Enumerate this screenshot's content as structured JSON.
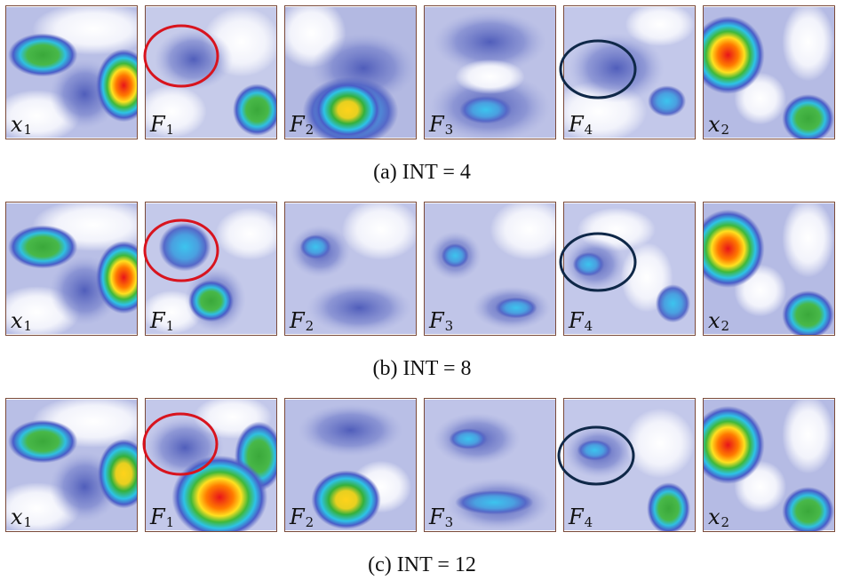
{
  "rows": [
    {
      "caption": "(a)  INT = 4",
      "panels": [
        {
          "var": "x",
          "sub": "1"
        },
        {
          "var": "F",
          "sub": "1"
        },
        {
          "var": "F",
          "sub": "2"
        },
        {
          "var": "F",
          "sub": "3"
        },
        {
          "var": "F",
          "sub": "4"
        },
        {
          "var": "x",
          "sub": "2"
        }
      ]
    },
    {
      "caption": "(b)  INT = 8",
      "panels": [
        {
          "var": "x",
          "sub": "1"
        },
        {
          "var": "F",
          "sub": "1"
        },
        {
          "var": "F",
          "sub": "2"
        },
        {
          "var": "F",
          "sub": "3"
        },
        {
          "var": "F",
          "sub": "4"
        },
        {
          "var": "x",
          "sub": "2"
        }
      ]
    },
    {
      "caption": "(c)  INT = 12",
      "panels": [
        {
          "var": "x",
          "sub": "1"
        },
        {
          "var": "F",
          "sub": "1"
        },
        {
          "var": "F",
          "sub": "2"
        },
        {
          "var": "F",
          "sub": "3"
        },
        {
          "var": "F",
          "sub": "4"
        },
        {
          "var": "x",
          "sub": "2"
        }
      ]
    }
  ],
  "colors": {
    "red_ellipse": "#d8141e",
    "navy_ellipse": "#0f2848",
    "panel_border": "#7a4a3a"
  }
}
